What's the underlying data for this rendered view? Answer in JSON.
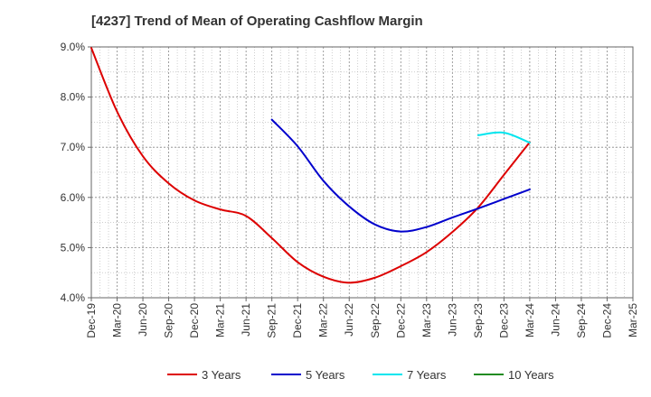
{
  "chart_data": {
    "type": "line",
    "title": "[4237]  Trend of Mean of Operating Cashflow Margin",
    "xlabel": "",
    "ylabel": "",
    "categories": [
      "Dec-19",
      "Mar-20",
      "Jun-20",
      "Sep-20",
      "Dec-20",
      "Mar-21",
      "Jun-21",
      "Sep-21",
      "Dec-21",
      "Mar-22",
      "Jun-22",
      "Sep-22",
      "Dec-22",
      "Mar-23",
      "Jun-23",
      "Sep-23",
      "Dec-23",
      "Mar-24",
      "Jun-24",
      "Sep-24",
      "Dec-24",
      "Mar-25"
    ],
    "ylim": [
      4.0,
      9.0
    ],
    "yticks": [
      "4.0%",
      "5.0%",
      "6.0%",
      "7.0%",
      "8.0%",
      "9.0%"
    ],
    "grid": true,
    "legend_position": "bottom",
    "series": [
      {
        "name": "3 Years",
        "color": "#dd0000",
        "values": [
          8.98,
          7.71,
          6.82,
          6.28,
          5.94,
          5.76,
          5.63,
          5.19,
          4.71,
          4.42,
          4.3,
          4.4,
          4.63,
          4.91,
          5.31,
          5.8,
          6.45,
          7.1,
          null,
          null,
          null,
          null
        ]
      },
      {
        "name": "5 Years",
        "color": "#0000cc",
        "values": [
          null,
          null,
          null,
          null,
          null,
          null,
          null,
          7.55,
          7.02,
          6.33,
          5.82,
          5.46,
          5.32,
          5.41,
          5.6,
          5.78,
          5.97,
          6.16,
          null,
          null,
          null,
          null
        ]
      },
      {
        "name": "7 Years",
        "color": "#00e5ee",
        "values": [
          null,
          null,
          null,
          null,
          null,
          null,
          null,
          null,
          null,
          null,
          null,
          null,
          null,
          null,
          null,
          7.24,
          7.29,
          7.09,
          null,
          null,
          null,
          null
        ]
      },
      {
        "name": "10 Years",
        "color": "#228b22",
        "values": [
          null,
          null,
          null,
          null,
          null,
          null,
          null,
          null,
          null,
          null,
          null,
          null,
          null,
          null,
          null,
          null,
          null,
          null,
          null,
          null,
          null,
          null
        ]
      }
    ]
  }
}
